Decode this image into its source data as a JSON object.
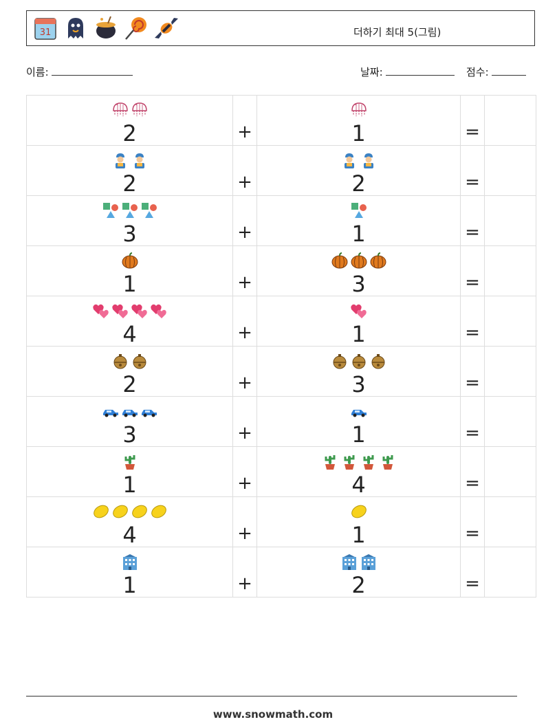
{
  "header": {
    "title": "더하기 최대 5(그림)",
    "icons": [
      "calendar-icon",
      "ghost-icon",
      "cauldron-icon",
      "lollipop-icon",
      "candy-icon"
    ]
  },
  "meta": {
    "name_label": "이름:",
    "date_label": "날짜:",
    "score_label": "점수:"
  },
  "rows": [
    {
      "a": "2",
      "b": "1",
      "icon": "jellyfish"
    },
    {
      "a": "2",
      "b": "2",
      "icon": "worker"
    },
    {
      "a": "3",
      "b": "1",
      "icon": "shapes"
    },
    {
      "a": "1",
      "b": "3",
      "icon": "pumpkin"
    },
    {
      "a": "4",
      "b": "1",
      "icon": "hearts"
    },
    {
      "a": "2",
      "b": "3",
      "icon": "bell"
    },
    {
      "a": "3",
      "b": "1",
      "icon": "car"
    },
    {
      "a": "1",
      "b": "4",
      "icon": "cactus"
    },
    {
      "a": "4",
      "b": "1",
      "icon": "lemon"
    },
    {
      "a": "1",
      "b": "2",
      "icon": "building"
    }
  ],
  "ops": {
    "plus": "+",
    "equals": "="
  },
  "footer": {
    "site": "www.snowmath.com"
  }
}
